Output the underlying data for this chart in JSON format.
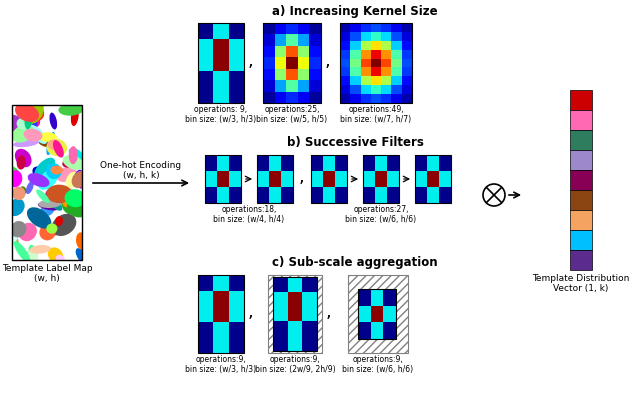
{
  "title_a": "a) Increasing Kernel Size",
  "title_b": "b) Successive Filters",
  "title_c": "c) Sub-scale aggregation",
  "label_template": "Template Label Map\n(w, h)",
  "label_onehot": "One-hot Encoding\n(w, h, k)",
  "label_dist": "Template Distribution\nVector (1, k)",
  "ops_a1": "operations: 9,\nbin size: (w/3, h/3)",
  "ops_a2": "operations:25,\nbin size: (w/5, h/5)",
  "ops_a3": "operations:49,\nbin size: (w/7, h/7)",
  "ops_b1": "operations:18,\nbin size: (w/4, h/4)",
  "ops_b2": "operations:27,\nbin size: (w/6, h/6)",
  "ops_c1": "operations:9,\nbin size: (w/3, h/3)",
  "ops_c2": "operations:9,\nbin size: (2w/9, 2h/9)",
  "ops_c3": "operations:9,\nbin size: (w/6, h/6)",
  "DARK_BLUE": "#00008B",
  "CYAN": "#00EEEE",
  "DARK_RED": "#8B0000",
  "dist_colors": [
    "#CC0000",
    "#FF69B4",
    "#2E7D5E",
    "#9B89CC",
    "#880055",
    "#8B4513",
    "#F4A460",
    "#00BFFF",
    "#5B2C8D"
  ]
}
